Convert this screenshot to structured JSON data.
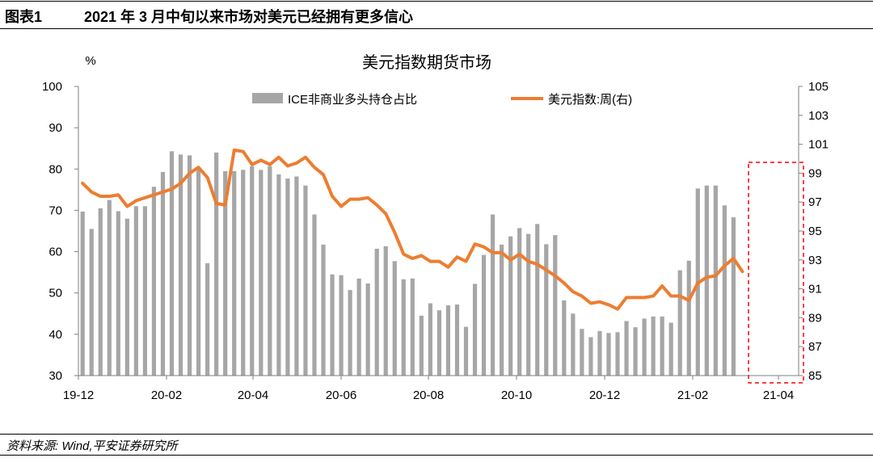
{
  "header": {
    "label": "图表1",
    "title": "2021 年 3 月中旬以来市场对美元已经拥有更多信心"
  },
  "source": "资料来源: Wind,平安证券研究所",
  "chart_data": {
    "type": "bar+line",
    "title": "美元指数期货市场",
    "ylabel_left": "%",
    "ylim_left": [
      30,
      100
    ],
    "yticks_left": [
      "100",
      "90",
      "80",
      "70",
      "60",
      "50",
      "40",
      "30"
    ],
    "ylim_right": [
      85,
      105
    ],
    "yticks_right": [
      "105",
      "103",
      "101",
      "99",
      "97",
      "95",
      "93",
      "91",
      "89",
      "87",
      "85"
    ],
    "xticks": [
      "19-12",
      "20-02",
      "20-04",
      "20-06",
      "20-08",
      "20-10",
      "20-12",
      "21-02",
      "21-04"
    ],
    "legend_position": "top",
    "colors": {
      "bar": "#a6a6a6",
      "line": "#ed7d31",
      "highlight": "#ff0000"
    },
    "series": [
      {
        "name": "ICE非商业多头持仓占比",
        "kind": "bar",
        "axis": "left",
        "values": [
          69.7,
          65.5,
          70.5,
          72.5,
          69.8,
          68.0,
          71.0,
          71.0,
          75.7,
          79.3,
          84.3,
          83.5,
          83.3,
          80.3,
          57.2,
          84.0,
          79.5,
          79.5,
          79.8,
          80.7,
          79.8,
          80.7,
          78.7,
          77.7,
          78.2,
          76.0,
          69.0,
          61.7,
          54.5,
          54.3,
          50.7,
          53.5,
          52.3,
          60.7,
          61.3,
          57.7,
          53.3,
          53.5,
          44.5,
          47.5,
          45.8,
          47.0,
          47.2,
          41.8,
          52.2,
          59.2,
          69.0,
          61.7,
          63.7,
          65.7,
          64.3,
          66.7,
          61.8,
          64.0,
          48.2,
          45.0,
          41.3,
          39.3,
          40.8,
          40.3,
          40.5,
          43.2,
          41.7,
          43.8,
          44.3,
          44.3,
          42.8,
          55.5,
          57.8,
          75.3,
          76.0,
          76.0,
          71.2,
          68.3
        ]
      },
      {
        "name": "美元指数:周(右)",
        "kind": "line",
        "axis": "right",
        "values": [
          98.3,
          97.7,
          97.4,
          97.4,
          97.5,
          96.7,
          97.1,
          97.3,
          97.5,
          97.7,
          97.9,
          98.3,
          99.0,
          99.4,
          98.7,
          96.9,
          96.8,
          100.6,
          100.5,
          99.6,
          99.9,
          99.6,
          100.1,
          99.5,
          99.7,
          100.1,
          99.4,
          98.9,
          97.4,
          96.7,
          97.2,
          97.2,
          97.3,
          96.8,
          96.2,
          94.9,
          93.4,
          93.1,
          93.3,
          92.9,
          92.9,
          92.5,
          93.2,
          92.9,
          94.1,
          93.9,
          93.5,
          93.5,
          93.0,
          93.4,
          92.9,
          92.7,
          92.3,
          91.9,
          91.4,
          90.8,
          90.5,
          90.0,
          90.1,
          89.9,
          89.6,
          90.4,
          90.4,
          90.4,
          90.5,
          91.2,
          90.5,
          90.5,
          90.2,
          91.4,
          91.8,
          91.9,
          92.6,
          93.1,
          92.2
        ]
      }
    ]
  }
}
